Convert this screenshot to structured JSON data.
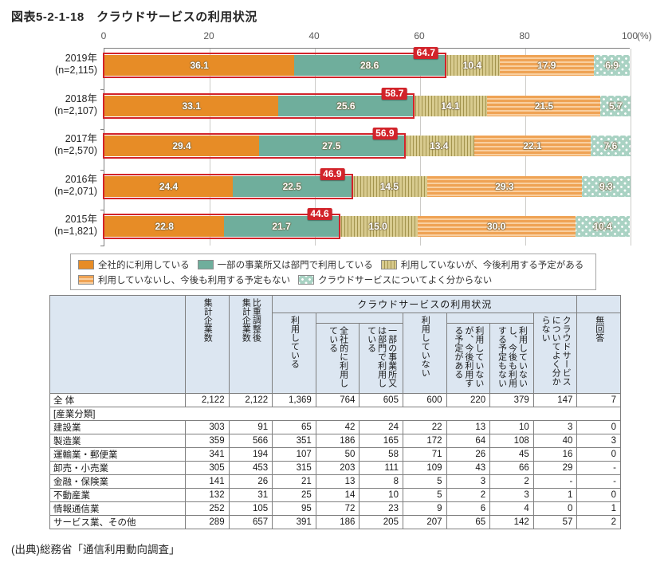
{
  "title": "図表5-2-1-18　クラウドサービスの利用状況",
  "source": "(出典)総務省「通信利用動向調査」",
  "chart_data": {
    "type": "bar",
    "variant": "horizontal-stacked",
    "unit_label": "(%)",
    "x_ticks": [
      "0",
      "20",
      "40",
      "60",
      "80",
      "100"
    ],
    "xlim": [
      0,
      100
    ],
    "grid": true,
    "highlight_color": "#d2232a",
    "series": [
      {
        "label": "全社的に利用している",
        "pattern": "solid",
        "color": "#e78c26"
      },
      {
        "label": "一部の事業所又は部門で利用している",
        "pattern": "solid",
        "color": "#6fae9c"
      },
      {
        "label": "利用していないが、今後利用する予定がある",
        "pattern": "vstripes",
        "color": "#d8cb8f",
        "stripe": "#a3944e"
      },
      {
        "label": "利用していないし、今後も利用する予定もない",
        "pattern": "hstripes",
        "color": "#efa355",
        "stripe": "#f9cfa0"
      },
      {
        "label": "クラウドサービスについてよく分からない",
        "pattern": "dots",
        "color": "#a9d2c3",
        "stripe": "#ffffff"
      }
    ],
    "rows": [
      {
        "year": "2019年",
        "n": "(n=2,115)",
        "values": [
          36.1,
          28.6,
          10.4,
          17.9,
          6.9
        ],
        "highlight_total": "64.7"
      },
      {
        "year": "2018年",
        "n": "(n=2,107)",
        "values": [
          33.1,
          25.6,
          14.1,
          21.5,
          5.7
        ],
        "highlight_total": "58.7"
      },
      {
        "year": "2017年",
        "n": "(n=2,570)",
        "values": [
          29.4,
          27.5,
          13.4,
          22.1,
          7.6
        ],
        "highlight_total": "56.9"
      },
      {
        "year": "2016年",
        "n": "(n=2,071)",
        "values": [
          24.4,
          22.5,
          14.5,
          29.3,
          9.3
        ],
        "highlight_total": "46.9"
      },
      {
        "year": "2015年",
        "n": "(n=1,821)",
        "values": [
          22.8,
          21.7,
          15.0,
          30.0,
          10.4
        ],
        "highlight_total": "44.6"
      }
    ]
  },
  "table": {
    "group_header": "クラウドサービスの利用状況",
    "headers": {
      "count": "集計企業数",
      "adjusted": "比重調整後\n集計企業数",
      "using": "利用している",
      "using_all": "全社的に利用し\nている",
      "using_part": "一部の事業所又\nは部門で利用し\nている",
      "not_using": "利用していない",
      "plan_to_use": "利用していない\nが、今後利用す\nる予定がある",
      "no_plan": "利用していない\nし、今後も利用\nする予定もない",
      "dont_know": "クラウドサービス\nについてよく分か\nらない",
      "no_answer": "無回答"
    },
    "total_row": {
      "label": "全 体",
      "values": [
        "2,122",
        "2,122",
        "1,369",
        "764",
        "605",
        "600",
        "220",
        "379",
        "147",
        "7"
      ]
    },
    "section_label": "[産業分類]",
    "industry_rows": [
      {
        "label": "建設業",
        "values": [
          "303",
          "91",
          "65",
          "42",
          "24",
          "22",
          "13",
          "10",
          "3",
          "0"
        ]
      },
      {
        "label": "製造業",
        "values": [
          "359",
          "566",
          "351",
          "186",
          "165",
          "172",
          "64",
          "108",
          "40",
          "3"
        ]
      },
      {
        "label": "運輸業・郵便業",
        "values": [
          "341",
          "194",
          "107",
          "50",
          "58",
          "71",
          "26",
          "45",
          "16",
          "0"
        ]
      },
      {
        "label": "卸売・小売業",
        "values": [
          "305",
          "453",
          "315",
          "203",
          "111",
          "109",
          "43",
          "66",
          "29",
          "-"
        ]
      },
      {
        "label": "金融・保険業",
        "values": [
          "141",
          "26",
          "21",
          "13",
          "8",
          "5",
          "3",
          "2",
          "-",
          "-"
        ]
      },
      {
        "label": "不動産業",
        "values": [
          "132",
          "31",
          "25",
          "14",
          "10",
          "5",
          "2",
          "3",
          "1",
          "0"
        ]
      },
      {
        "label": "情報通信業",
        "values": [
          "252",
          "105",
          "95",
          "72",
          "23",
          "9",
          "6",
          "4",
          "0",
          "1"
        ]
      },
      {
        "label": "サービス業、その他",
        "values": [
          "289",
          "657",
          "391",
          "186",
          "205",
          "207",
          "65",
          "142",
          "57",
          "2"
        ]
      }
    ]
  }
}
